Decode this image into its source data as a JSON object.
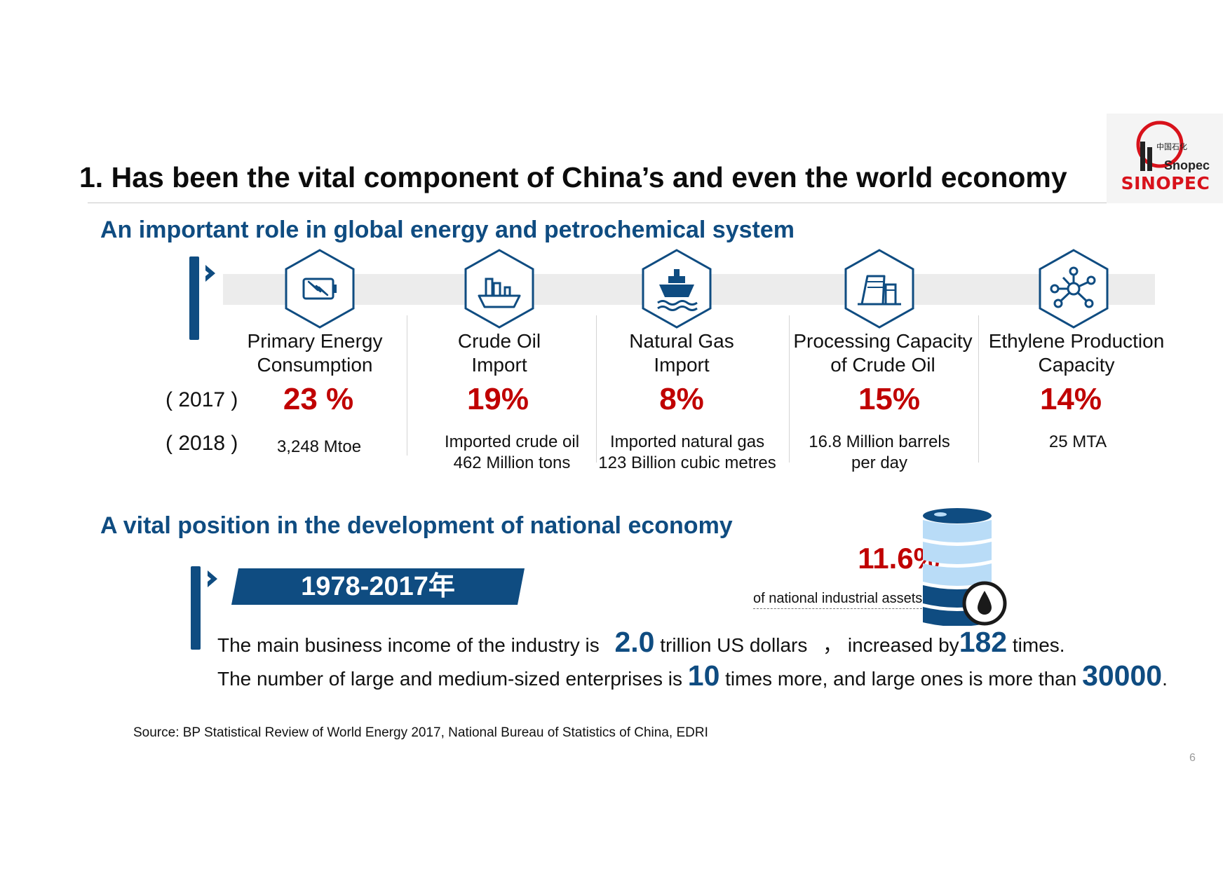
{
  "title": "1. Has been the vital component of China’s and even the world economy",
  "logo": {
    "wordmark": "SINOPEC",
    "chinese_text": "中国石化",
    "emblem_text": "Snopec",
    "brand_color": "#d8121b"
  },
  "global_section": {
    "heading": "An important role in global energy and petrochemical system",
    "year_labels": [
      "( 2017 )",
      "( 2018 )"
    ],
    "metrics": [
      {
        "label_line1": "Primary Energy",
        "label_line2": "Consumption",
        "share_2017": "23 %",
        "detail_line1": "3,248 Mtoe",
        "detail_line2": "",
        "icon": "battery-lightning-icon"
      },
      {
        "label_line1": "Crude Oil",
        "label_line2": "Import",
        "share_2017": "19%",
        "detail_line1": "Imported crude oil",
        "detail_line2": "462 Million tons",
        "icon": "oil-tanker-icon"
      },
      {
        "label_line1": "Natural Gas",
        "label_line2": "Import",
        "share_2017": "8%",
        "detail_line1": "Imported natural gas",
        "detail_line2": "123 Billion cubic metres",
        "icon": "lng-ship-icon"
      },
      {
        "label_line1": "Processing Capacity",
        "label_line2": "of Crude Oil",
        "share_2017": "15%",
        "detail_line1": "16.8 Million barrels",
        "detail_line2": "per day",
        "icon": "refinery-icon"
      },
      {
        "label_line1": "Ethylene Production",
        "label_line2": "Capacity",
        "share_2017": "14%",
        "detail_line1": "25 MTA",
        "detail_line2": "",
        "icon": "molecule-icon"
      }
    ]
  },
  "national_section": {
    "heading": "A vital position in the development of national economy",
    "period": "1978-2017年",
    "assets_share": "11.6%",
    "assets_label": "of national industrial assets",
    "line1": {
      "prefix": "The main business income of the industry is",
      "value1": "2.0",
      "middle": "trillion US dollars",
      "separator": "，",
      "middle2": "increased by",
      "value2": "182",
      "suffix": "times."
    },
    "line2": {
      "prefix": "The number of large and medium-sized enterprises is",
      "value1": "10",
      "middle": "times more, and large ones is more than",
      "value2": "30000",
      "suffix": "."
    }
  },
  "source": "Source: BP Statistical Review of World Energy 2017, National Bureau of Statistics of China, EDRI",
  "page_number": "6",
  "colors": {
    "primary_blue": "#0f4c81",
    "highlight_red": "#c00000",
    "light_blue": "#b9dcf7",
    "band_grey": "#ececec"
  }
}
